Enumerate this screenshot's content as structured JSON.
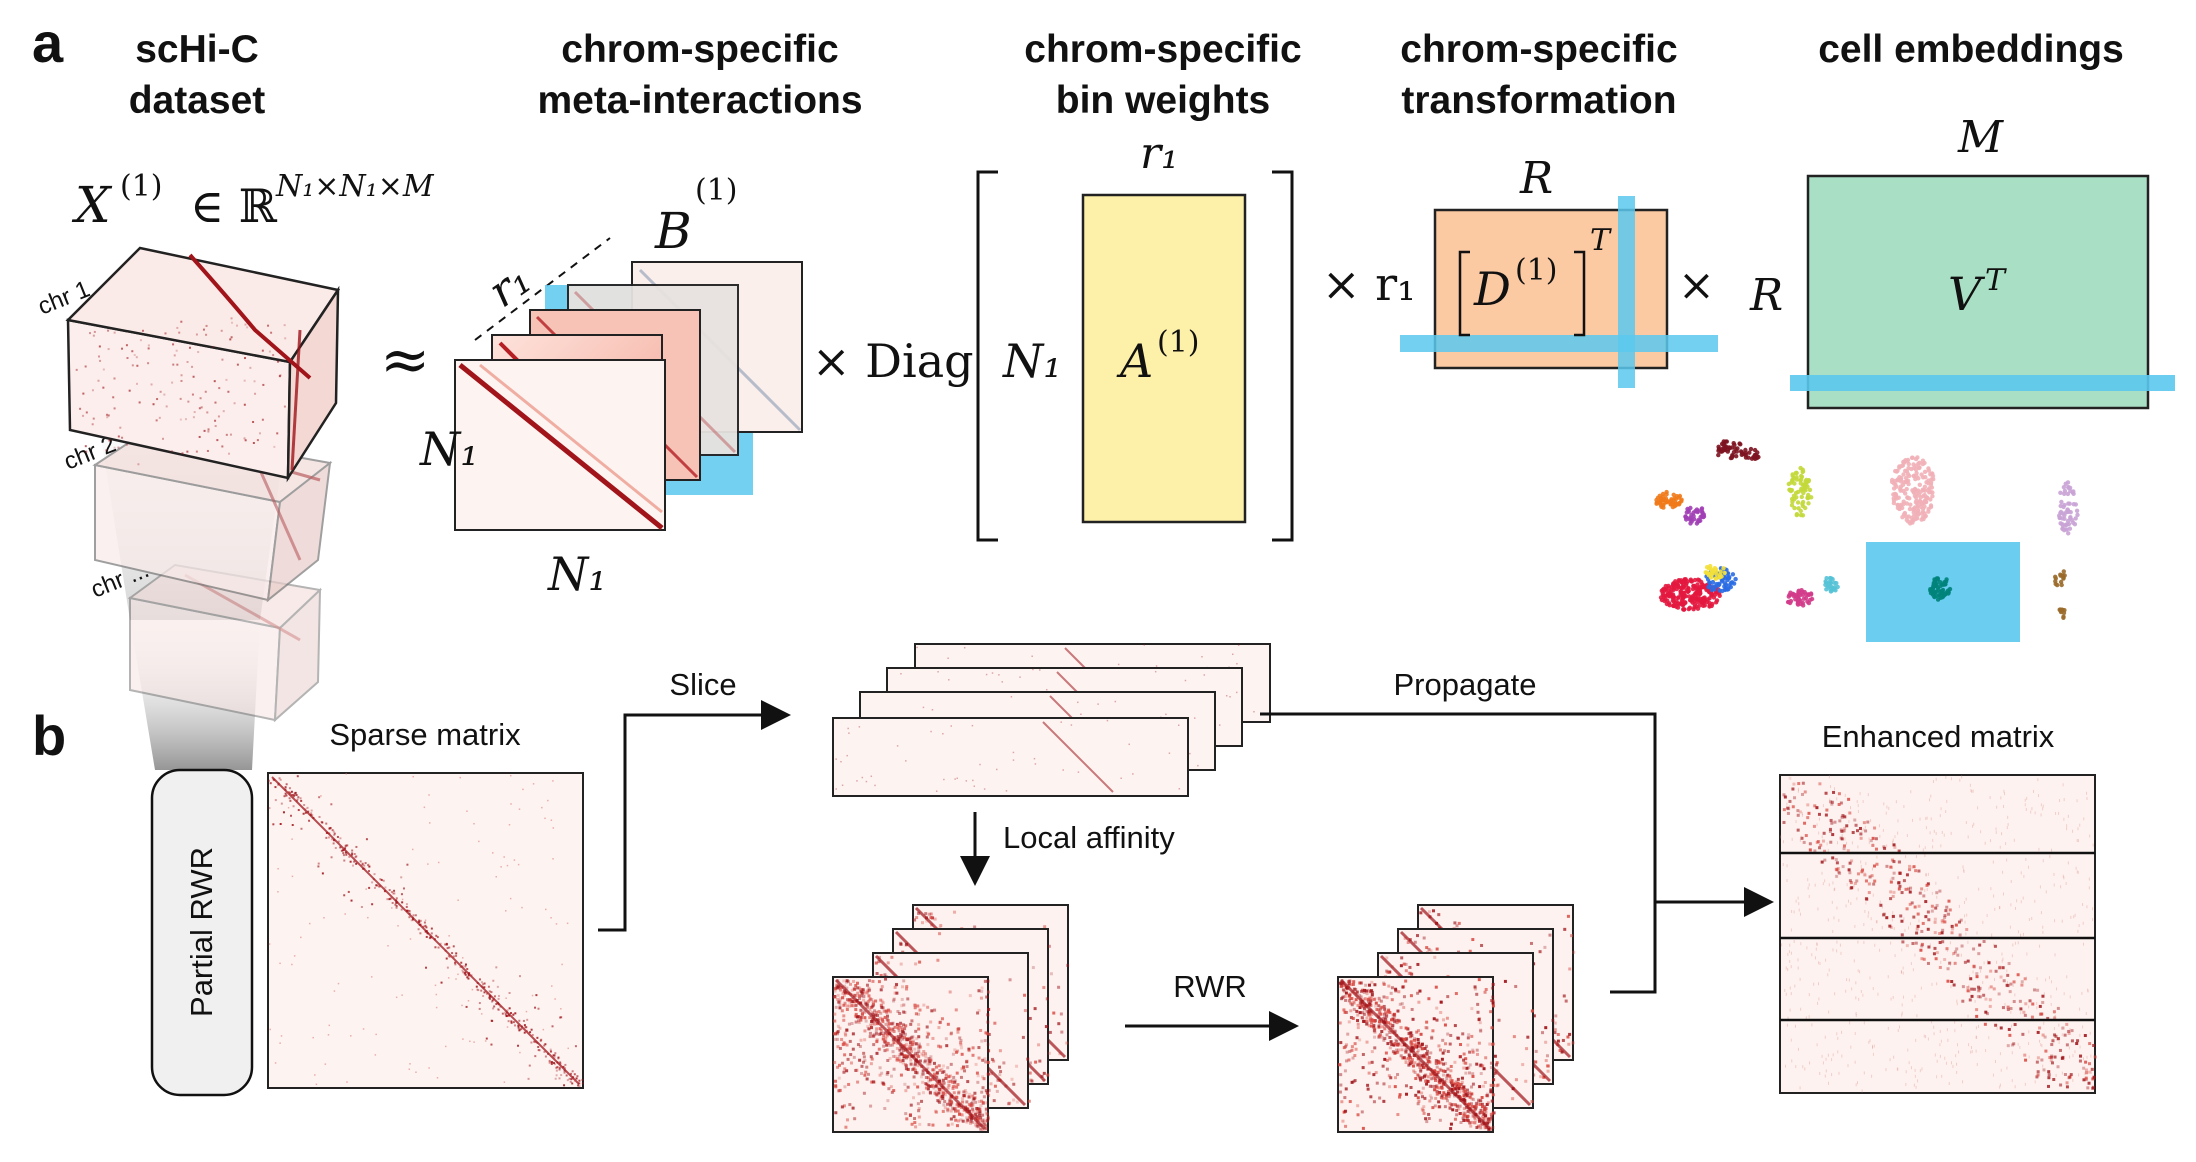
{
  "panel_a": {
    "letter": "a",
    "headers": {
      "h1": [
        "scHi-C",
        "dataset"
      ],
      "h2": [
        "chrom-specific",
        "meta-interactions"
      ],
      "h3": [
        "chrom-specific",
        "bin weights"
      ],
      "h4": [
        "chrom-specific",
        "transformation"
      ],
      "h5": [
        "cell embeddings"
      ]
    },
    "math": {
      "x_tensor": "X⁽¹⁾ ∈ ℝ^{N₁×N₁×M}",
      "x_base": "X",
      "x_sup": "(1)",
      "in_R": "∈ ℝ",
      "x_dims": "N₁×N₁×M",
      "approx": "≈",
      "b": "B",
      "b_sup": "(1)",
      "r1": "r₁",
      "n1": "N₁",
      "times_diag": "× Diag",
      "a": "A",
      "a_sup": "(1)",
      "times": "×",
      "times_r1": "× r₁",
      "d": "D",
      "d_sup": "(1)",
      "t_sup": "T",
      "big_r": "R",
      "big_m": "M",
      "v": "V",
      "v_sup": "T"
    },
    "chromosomes": [
      "chr 1",
      "chr 2",
      "chr ..."
    ],
    "colors": {
      "yellow_block": "#fdf0a8",
      "orange_block": "#fbc9a2",
      "green_block": "#a9dfc4",
      "highlight": "#5bc8ee",
      "heat_dark": "#a0141a",
      "heat_light": "#fdeeea"
    },
    "scatter_colors": [
      "#7d1321",
      "#f07a1a",
      "#a13fb5",
      "#c3d83a",
      "#f1b0b7",
      "#d13b8a",
      "#55c2d6",
      "#c9a3d5",
      "#e3183f",
      "#2a6be3",
      "#00837a",
      "#9a6a2a",
      "#f3e03b"
    ]
  },
  "panel_b": {
    "letter": "b",
    "partial_rwr": "Partial RWR",
    "sparse_matrix": "Sparse matrix",
    "slice": "Slice",
    "local_affinity": "Local affinity",
    "rwr": "RWR",
    "propagate": "Propagate",
    "enhanced_matrix": "Enhanced matrix"
  }
}
